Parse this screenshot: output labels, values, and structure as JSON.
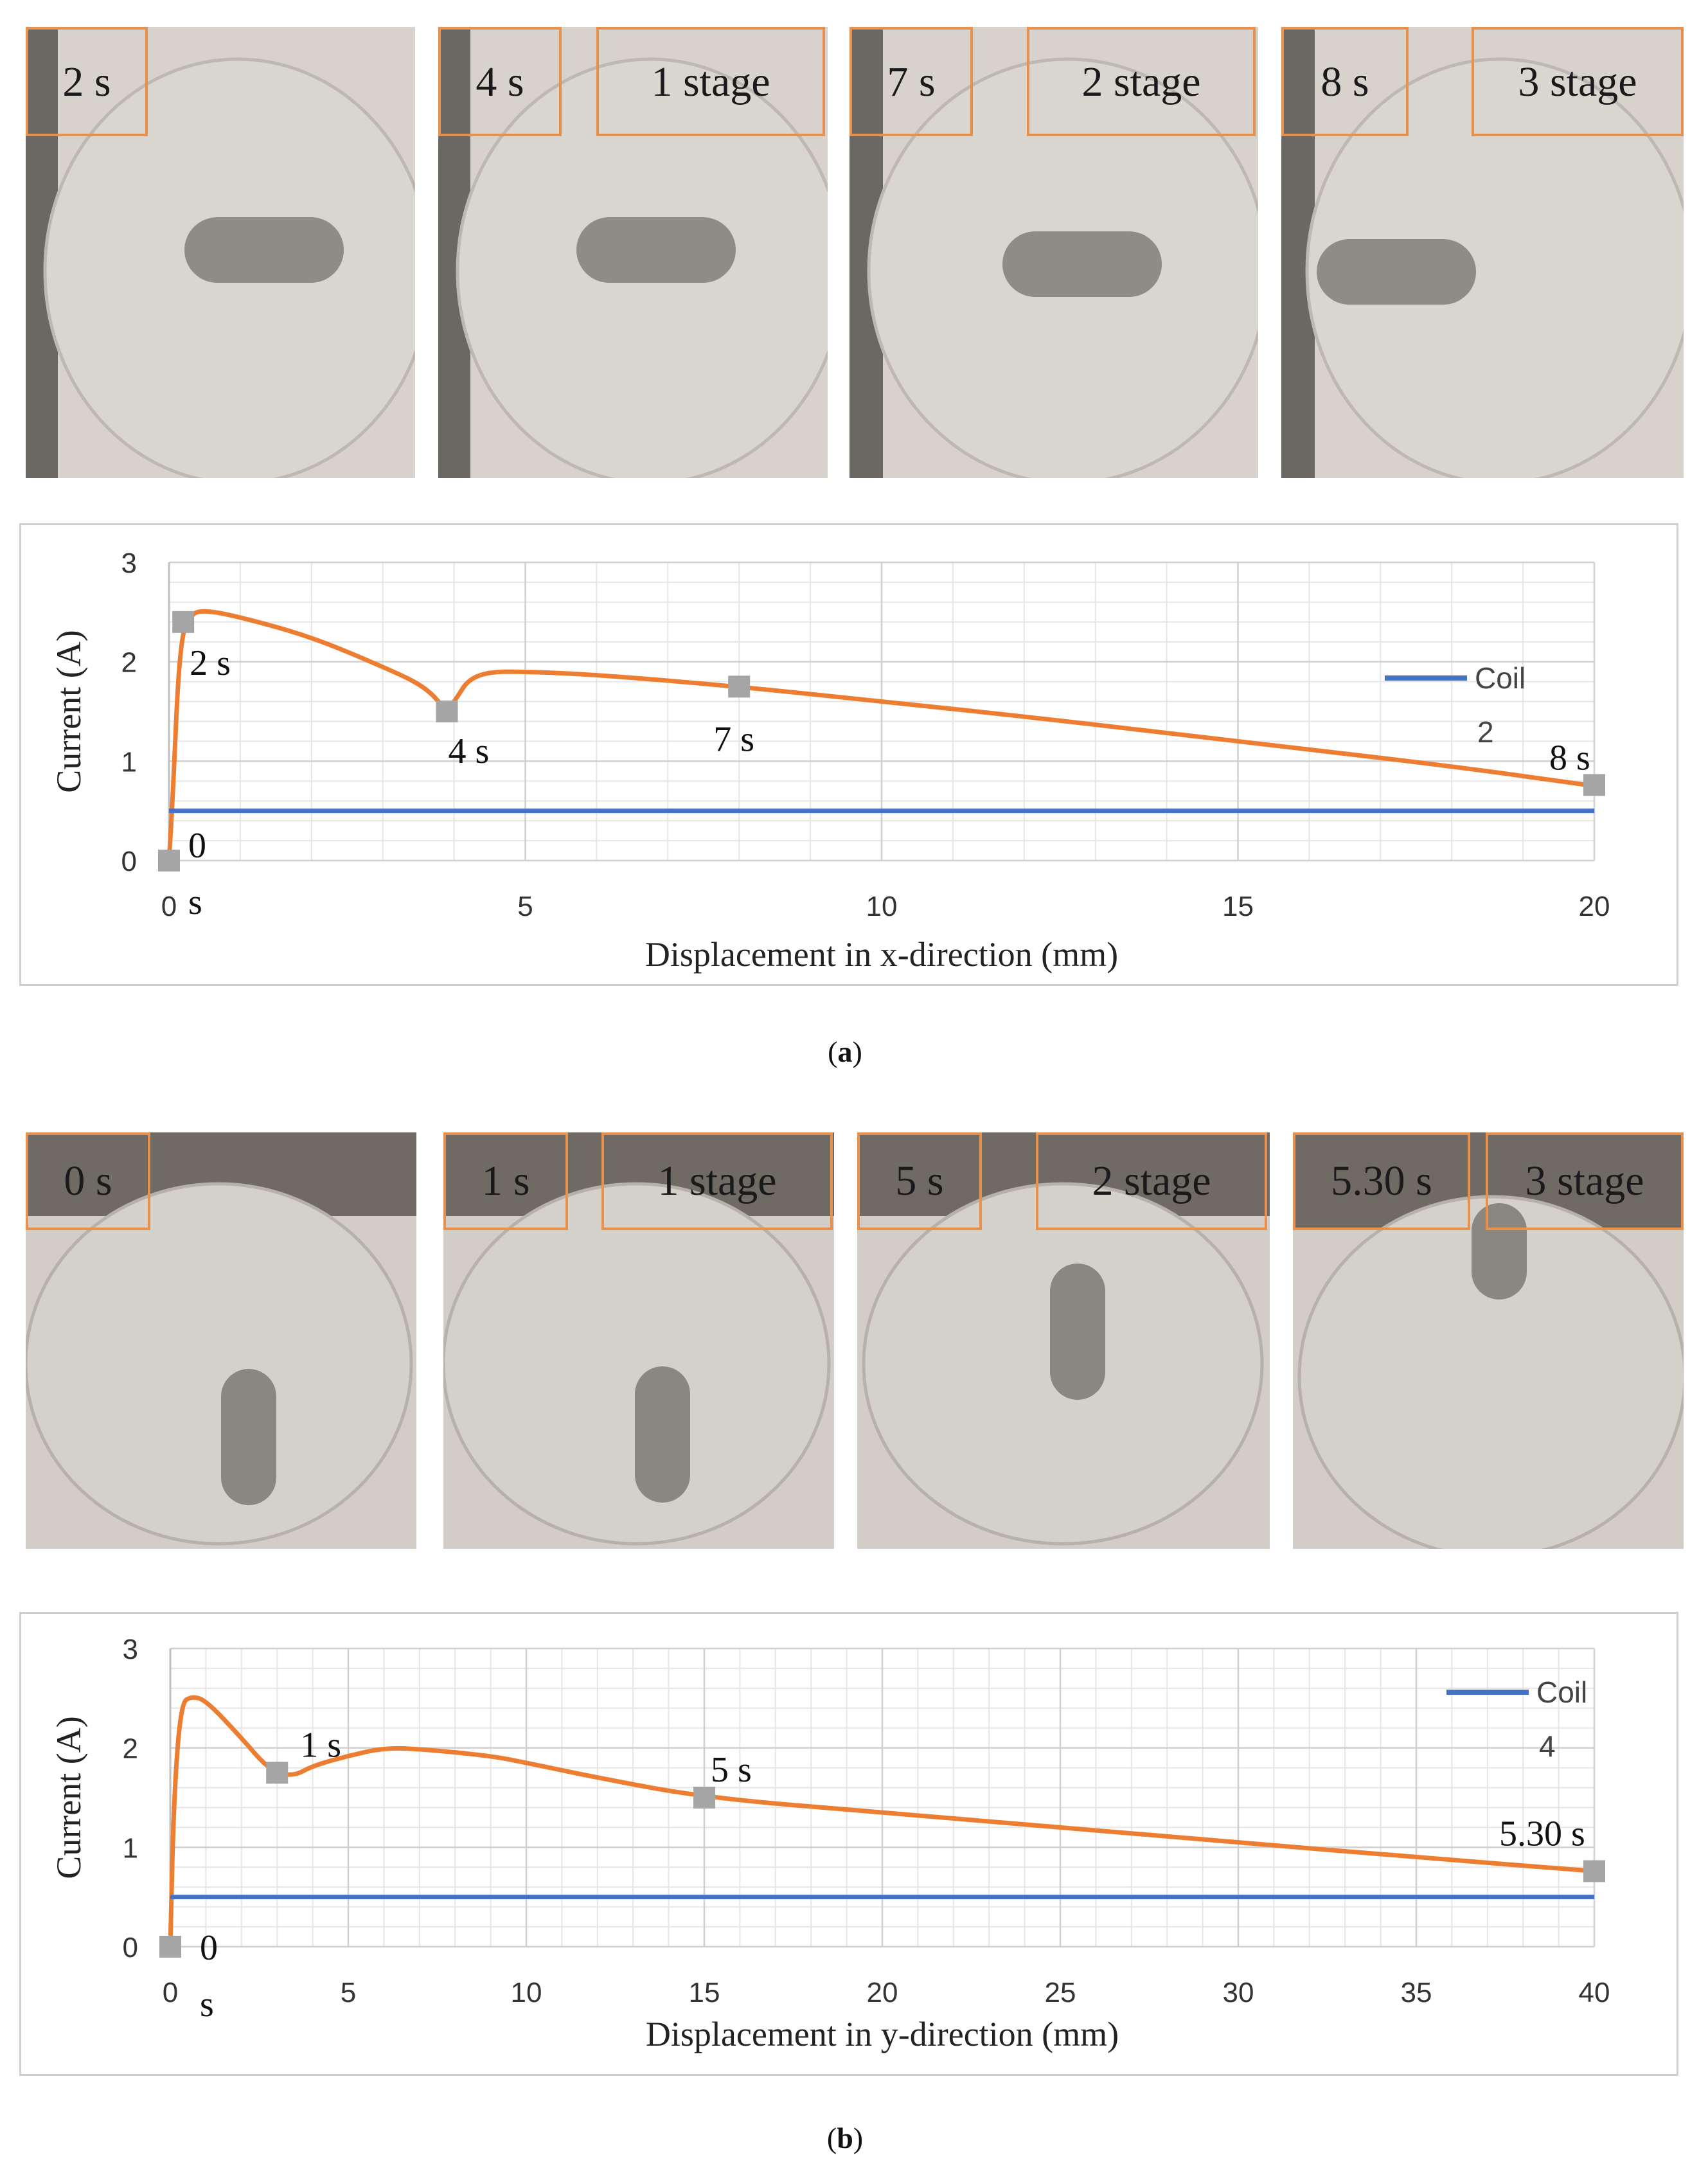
{
  "panels": [
    {
      "caption_letter": "a",
      "frames": [
        {
          "time": "2 s",
          "stage": ""
        },
        {
          "time": "4 s",
          "stage": "1 stage"
        },
        {
          "time": "7 s",
          "stage": "2 stage"
        },
        {
          "time": "8 s",
          "stage": "3 stage"
        }
      ]
    },
    {
      "caption_letter": "b",
      "frames": [
        {
          "time": "0 s",
          "stage": ""
        },
        {
          "time": "1 s",
          "stage": "1 stage"
        },
        {
          "time": "5 s",
          "stage": "2 stage"
        },
        {
          "time": "5.30 s",
          "stage": "3 stage"
        }
      ]
    }
  ],
  "colors": {
    "current": "#ed7d31",
    "coil": "#4472c4",
    "marker": "#a5a5a5",
    "box": "#e8914f"
  },
  "chart_data": [
    {
      "type": "line",
      "xlabel": "Displacement in x-direction (mm)",
      "ylabel": "Current (A)",
      "xlim": [
        0,
        20
      ],
      "ylim": [
        0,
        3
      ],
      "xticks": [
        0,
        5,
        10,
        15,
        20
      ],
      "yticks": [
        0,
        1,
        2,
        3
      ],
      "grid": true,
      "series": [
        {
          "name": "Current",
          "x": [
            0,
            0.05,
            0.15,
            0.3,
            0.5,
            1,
            2,
            3,
            3.6,
            3.9,
            4.05,
            4.2,
            4.5,
            5,
            6,
            8,
            10,
            12,
            15,
            18,
            20
          ],
          "y": [
            0,
            0.6,
            2.2,
            2.48,
            2.52,
            2.45,
            2.25,
            1.95,
            1.75,
            1.5,
            1.65,
            1.82,
            1.9,
            1.9,
            1.87,
            1.75,
            1.6,
            1.45,
            1.2,
            0.95,
            0.75
          ]
        },
        {
          "name": "Coil 2",
          "x": [
            0,
            0.05,
            20
          ],
          "y": [
            0.5,
            0.5,
            0.5
          ]
        }
      ],
      "legend": {
        "label": "Coil",
        "label2": "2",
        "position": "right"
      },
      "markers": [
        {
          "x": 0,
          "y": 0,
          "label": "0",
          "label2": "s"
        },
        {
          "x": 0.2,
          "y": 2.4,
          "label": "2 s"
        },
        {
          "x": 3.9,
          "y": 1.5,
          "label": "4 s"
        },
        {
          "x": 8,
          "y": 1.75,
          "label": "7 s"
        },
        {
          "x": 20,
          "y": 0.76,
          "label": "8 s"
        }
      ]
    },
    {
      "type": "line",
      "xlabel": "Displacement in y-direction (mm)",
      "ylabel": "Current (A)",
      "xlim": [
        0,
        40
      ],
      "ylim": [
        0,
        3
      ],
      "xticks": [
        0,
        5,
        10,
        15,
        20,
        25,
        30,
        35,
        40
      ],
      "yticks": [
        0,
        1,
        2,
        3
      ],
      "grid": true,
      "series": [
        {
          "name": "Current",
          "x": [
            0,
            0.1,
            0.3,
            0.6,
            1,
            2,
            2.6,
            3,
            3.5,
            4,
            5,
            6,
            7,
            9,
            10,
            12,
            15,
            20,
            25,
            30,
            35,
            40
          ],
          "y": [
            0,
            1.5,
            2.45,
            2.52,
            2.48,
            2.1,
            1.85,
            1.75,
            1.72,
            1.82,
            1.92,
            2.0,
            1.99,
            1.92,
            1.85,
            1.7,
            1.5,
            1.35,
            1.2,
            1.05,
            0.9,
            0.76
          ]
        },
        {
          "name": "Coil 4",
          "x": [
            0,
            0.1,
            40
          ],
          "y": [
            0.5,
            0.5,
            0.5
          ]
        }
      ],
      "legend": {
        "label": "Coil",
        "label2": "4",
        "position": "top-right"
      },
      "markers": [
        {
          "x": 0,
          "y": 0,
          "label": "0",
          "label2": "s"
        },
        {
          "x": 3,
          "y": 1.75,
          "label": "1 s"
        },
        {
          "x": 15,
          "y": 1.5,
          "label": "5 s"
        },
        {
          "x": 40,
          "y": 0.76,
          "label": "5.30 s"
        }
      ]
    }
  ]
}
